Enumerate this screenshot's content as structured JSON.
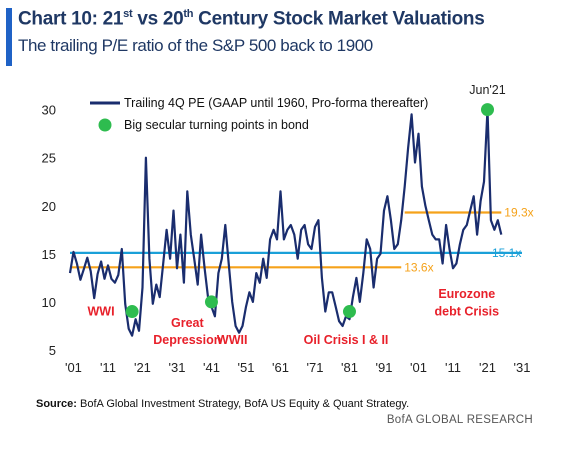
{
  "header": {
    "title_prefix": "Chart 10: 21",
    "title_sup1": "st",
    "title_mid": " vs 20",
    "title_sup2": "th",
    "title_suffix": " Century Stock Market Valuations",
    "subtitle": "The trailing P/E ratio of the S&P 500 back to 1900"
  },
  "footer": {
    "source_label": "Source:",
    "source_text": " BofA Global Investment Strategy, BofA US Equity & Quant Strategy.",
    "brand": "BofA GLOBAL RESEARCH"
  },
  "colors": {
    "series": "#1a2d6e",
    "dots": "#2ebc4f",
    "hline_cyan": "#1aa0d8",
    "hline_orange": "#f5a21a",
    "label_red": "#e8202a",
    "title": "#1f3864"
  },
  "chart_data": {
    "type": "line",
    "xlim": [
      1900,
      2031
    ],
    "ylim": [
      5,
      31
    ],
    "x_ticks": [
      1901,
      1911,
      1921,
      1931,
      1941,
      1951,
      1961,
      1971,
      1981,
      1991,
      2001,
      2011,
      2021,
      2031
    ],
    "x_tick_labels": [
      "'01",
      "'11",
      "'21",
      "'31",
      "'41",
      "'51",
      "'61",
      "'71",
      "'81",
      "'91",
      "'01",
      "'11",
      "'21",
      "'31"
    ],
    "y_ticks": [
      5,
      10,
      15,
      20,
      25,
      30
    ],
    "legend": {
      "line": "Trailing 4Q PE (GAAP until 1960, Pro-forma thereafter)",
      "dot": "Big secular turning points in bond"
    },
    "series": [
      {
        "name": "Trailing 4Q PE (GAAP until 1960, Pro-forma thereafter)",
        "points": [
          [
            1900,
            13.0
          ],
          [
            1901,
            15.2
          ],
          [
            1902,
            14.0
          ],
          [
            1903,
            12.3
          ],
          [
            1904,
            13.4
          ],
          [
            1905,
            14.6
          ],
          [
            1906,
            13.2
          ],
          [
            1907,
            10.4
          ],
          [
            1908,
            12.9
          ],
          [
            1909,
            14.2
          ],
          [
            1910,
            12.4
          ],
          [
            1911,
            13.8
          ],
          [
            1912,
            12.4
          ],
          [
            1913,
            12.0
          ],
          [
            1914,
            12.8
          ],
          [
            1915,
            15.5
          ],
          [
            1916,
            9.8
          ],
          [
            1917,
            7.2
          ],
          [
            1918,
            6.5
          ],
          [
            1919,
            8.2
          ],
          [
            1920,
            7.0
          ],
          [
            1921,
            11.5
          ],
          [
            1922,
            25.0
          ],
          [
            1923,
            14.5
          ],
          [
            1924,
            9.8
          ],
          [
            1925,
            11.8
          ],
          [
            1926,
            10.5
          ],
          [
            1927,
            14.0
          ],
          [
            1928,
            17.5
          ],
          [
            1929,
            14.5
          ],
          [
            1930,
            19.5
          ],
          [
            1931,
            13.5
          ],
          [
            1932,
            17.0
          ],
          [
            1933,
            12.0
          ],
          [
            1934,
            21.5
          ],
          [
            1935,
            17.0
          ],
          [
            1936,
            14.5
          ],
          [
            1937,
            11.8
          ],
          [
            1938,
            17.0
          ],
          [
            1939,
            13.5
          ],
          [
            1940,
            10.5
          ],
          [
            1941,
            9.5
          ],
          [
            1942,
            8.5
          ],
          [
            1943,
            13.0
          ],
          [
            1944,
            14.5
          ],
          [
            1945,
            18.0
          ],
          [
            1946,
            14.0
          ],
          [
            1947,
            10.0
          ],
          [
            1948,
            7.5
          ],
          [
            1949,
            6.8
          ],
          [
            1950,
            7.5
          ],
          [
            1951,
            9.5
          ],
          [
            1952,
            11.0
          ],
          [
            1953,
            10.0
          ],
          [
            1954,
            13.0
          ],
          [
            1955,
            12.0
          ],
          [
            1956,
            14.5
          ],
          [
            1957,
            12.5
          ],
          [
            1958,
            16.5
          ],
          [
            1959,
            17.5
          ],
          [
            1960,
            16.5
          ],
          [
            1961,
            21.5
          ],
          [
            1962,
            16.5
          ],
          [
            1963,
            17.5
          ],
          [
            1964,
            18.0
          ],
          [
            1965,
            17.0
          ],
          [
            1966,
            14.5
          ],
          [
            1967,
            17.5
          ],
          [
            1968,
            18.0
          ],
          [
            1969,
            16.0
          ],
          [
            1970,
            15.5
          ],
          [
            1971,
            17.8
          ],
          [
            1972,
            18.5
          ],
          [
            1973,
            12.5
          ],
          [
            1974,
            9.0
          ],
          [
            1975,
            11.0
          ],
          [
            1976,
            11.0
          ],
          [
            1977,
            9.5
          ],
          [
            1978,
            8.0
          ],
          [
            1979,
            7.5
          ],
          [
            1980,
            8.5
          ],
          [
            1981,
            8.2
          ],
          [
            1982,
            10.5
          ],
          [
            1983,
            12.5
          ],
          [
            1984,
            10.0
          ],
          [
            1985,
            13.0
          ],
          [
            1986,
            16.5
          ],
          [
            1987,
            15.5
          ],
          [
            1988,
            11.5
          ],
          [
            1989,
            14.5
          ],
          [
            1990,
            15.0
          ],
          [
            1991,
            19.5
          ],
          [
            1992,
            21.0
          ],
          [
            1993,
            18.5
          ],
          [
            1994,
            15.5
          ],
          [
            1995,
            16.0
          ],
          [
            1996,
            18.5
          ],
          [
            1997,
            22.0
          ],
          [
            1998,
            26.0
          ],
          [
            1999,
            29.5
          ],
          [
            2000,
            24.5
          ],
          [
            2001,
            27.5
          ],
          [
            2002,
            22.0
          ],
          [
            2003,
            20.0
          ],
          [
            2004,
            18.5
          ],
          [
            2005,
            17.0
          ],
          [
            2006,
            16.5
          ],
          [
            2007,
            16.5
          ],
          [
            2008,
            14.0
          ],
          [
            2009,
            18.0
          ],
          [
            2010,
            15.5
          ],
          [
            2011,
            13.5
          ],
          [
            2012,
            14.0
          ],
          [
            2013,
            16.0
          ],
          [
            2014,
            17.5
          ],
          [
            2015,
            18.0
          ],
          [
            2016,
            19.5
          ],
          [
            2017,
            21.0
          ],
          [
            2018,
            17.0
          ],
          [
            2019,
            20.5
          ],
          [
            2020,
            22.5
          ],
          [
            2021,
            30.0
          ],
          [
            2022,
            18.5
          ],
          [
            2023,
            17.5
          ],
          [
            2024,
            18.5
          ],
          [
            2025,
            17.0
          ]
        ]
      }
    ],
    "hlines": [
      {
        "y": 15.1,
        "label": "15.1x",
        "color": "cyan",
        "x_start": 1900,
        "x_end": 2031
      },
      {
        "y": 13.6,
        "label": "13.6x",
        "color": "orange",
        "x_start": 1900,
        "x_end": 1996
      },
      {
        "y": 19.3,
        "label": "19.3x",
        "color": "orange",
        "x_start": 1997,
        "x_end": 2025
      }
    ],
    "turning_points": [
      {
        "x": 1918,
        "y": 9.0
      },
      {
        "x": 1941,
        "y": 10.0
      },
      {
        "x": 1981,
        "y": 9.0
      },
      {
        "x": 2021,
        "y": 30.0
      }
    ],
    "annotations": [
      {
        "text": "Jun'21",
        "x": 2021,
        "y": 31.6
      },
      {
        "text": "WWI",
        "x": 1909,
        "y": 8.6
      },
      {
        "text": "Great",
        "x": 1934,
        "y": 7.4
      },
      {
        "text": "Depression",
        "x": 1934,
        "y": 5.6
      },
      {
        "text": "WWII",
        "x": 1947,
        "y": 5.6
      },
      {
        "text": "Oil Crisis I &  II",
        "x": 1980,
        "y": 5.6
      },
      {
        "text": "Eurozone",
        "x": 2015,
        "y": 10.4
      },
      {
        "text": "debt Crisis",
        "x": 2015,
        "y": 8.6
      }
    ]
  }
}
